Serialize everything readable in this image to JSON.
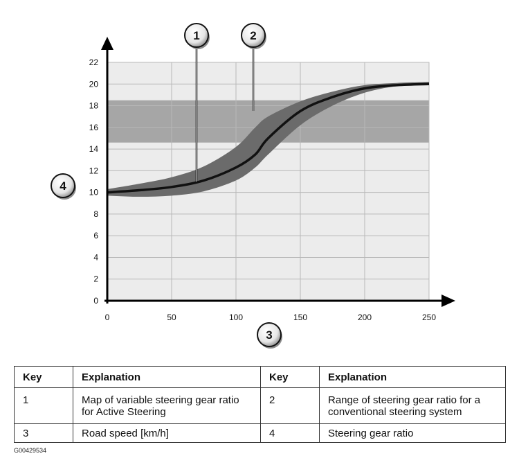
{
  "chart_data": {
    "type": "line",
    "x_ticks": [
      0,
      50,
      100,
      150,
      200,
      250
    ],
    "y_ticks": [
      0,
      2,
      4,
      6,
      8,
      10,
      12,
      14,
      16,
      18,
      20,
      22
    ],
    "xlim": [
      0,
      250
    ],
    "ylim": [
      0,
      22
    ],
    "grid": true,
    "series": [
      {
        "name": "1",
        "x": [
          0,
          25,
          50,
          75,
          100,
          115,
          125,
          150,
          175,
          200,
          225,
          250
        ],
        "y": [
          10,
          10.2,
          10.5,
          11.1,
          12.3,
          13.5,
          15,
          17.5,
          18.8,
          19.6,
          19.9,
          20
        ]
      }
    ],
    "band_around_series": {
      "x": [
        0,
        25,
        50,
        75,
        100,
        115,
        125,
        150,
        175,
        200,
        225,
        250
      ],
      "upper": [
        10.3,
        10.8,
        11.4,
        12.4,
        14.2,
        16,
        17,
        18.4,
        19.3,
        19.9,
        20.1,
        20.2
      ],
      "lower": [
        9.7,
        9.6,
        9.7,
        10.1,
        11.1,
        12.3,
        13.5,
        16.2,
        18,
        19.2,
        19.8,
        19.9
      ]
    },
    "range_band": {
      "name": "2",
      "y_min": 14.6,
      "y_max": 18.5
    },
    "callouts": [
      "1",
      "2",
      "3",
      "4"
    ]
  },
  "key_table": {
    "headers": [
      "Key",
      "Explanation",
      "Key",
      "Explanation"
    ],
    "rows": [
      [
        "1",
        "Map of variable steering gear ratio for Active Steering",
        "2",
        "Range of steering gear ratio for a conventional steering system"
      ],
      [
        "3",
        "Road speed [km/h]",
        "4",
        "Steering gear ratio"
      ]
    ]
  },
  "figure_id": "G00429534",
  "colors": {
    "background": "#ececec",
    "band": "#a6a6a6",
    "curve_band": "#6b6b6b",
    "curve": "#111111",
    "grid": "#b8b8b8"
  }
}
